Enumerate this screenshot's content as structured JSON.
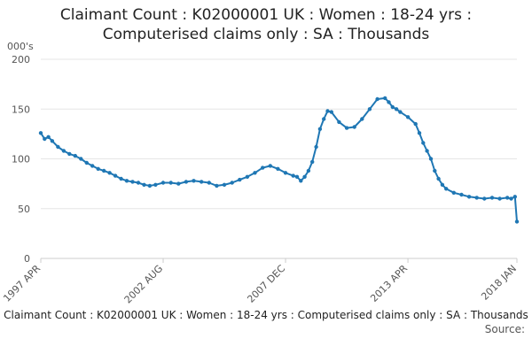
{
  "chart_data": {
    "type": "line",
    "title_line1": "Claimant Count : K02000001 UK : Women : 18-24 yrs :",
    "title_line2": "Computerised claims only : SA : Thousands",
    "ylabel": "000's",
    "ylim": [
      0,
      200
    ],
    "yticks": [
      "0",
      "50",
      "100",
      "150",
      "200"
    ],
    "xticks": [
      "1997 APR",
      "2002 AUG",
      "2007 DEC",
      "2013 APR",
      "2018 JAN"
    ],
    "grid": true,
    "series_color": "#1f77b4",
    "series": [
      {
        "x": [
          "1997 APR",
          "1997 JUN",
          "1997 AUG",
          "1997 OCT",
          "1998 JAN",
          "1998 APR",
          "1998 JUL",
          "1998 OCT",
          "1999 JAN",
          "1999 APR",
          "1999 JUL",
          "1999 OCT",
          "2000 JAN",
          "2000 APR",
          "2000 JUL",
          "2000 OCT",
          "2001 JAN",
          "2001 APR",
          "2001 JUL",
          "2001 OCT",
          "2002 JAN",
          "2002 APR",
          "2002 AUG",
          "2002 DEC",
          "2003 APR",
          "2003 AUG",
          "2003 DEC",
          "2004 APR",
          "2004 AUG",
          "2004 DEC",
          "2005 APR",
          "2005 AUG",
          "2005 DEC",
          "2006 APR",
          "2006 AUG",
          "2006 DEC",
          "2007 APR",
          "2007 AUG",
          "2007 DEC",
          "2008 APR",
          "2008 JUN",
          "2008 AUG",
          "2008 OCT",
          "2008 DEC",
          "2009 FEB",
          "2009 APR",
          "2009 JUN",
          "2009 AUG",
          "2009 OCT",
          "2009 DEC",
          "2010 APR",
          "2010 AUG",
          "2010 DEC",
          "2011 APR",
          "2011 AUG",
          "2011 DEC",
          "2012 APR",
          "2012 JUN",
          "2012 AUG",
          "2012 OCT",
          "2012 DEC",
          "2013 APR",
          "2013 AUG",
          "2013 OCT",
          "2013 DEC",
          "2014 FEB",
          "2014 APR",
          "2014 JUN",
          "2014 AUG",
          "2014 OCT",
          "2014 DEC",
          "2015 APR",
          "2015 AUG",
          "2015 DEC",
          "2016 APR",
          "2016 AUG",
          "2016 DEC",
          "2017 APR",
          "2017 AUG",
          "2017 OCT",
          "2017 DEC",
          "2018 JAN"
        ],
        "values": [
          126,
          120,
          122,
          118,
          112,
          108,
          105,
          103,
          100,
          96,
          93,
          90,
          88,
          86,
          83,
          80,
          78,
          77,
          76,
          74,
          73,
          74,
          76,
          76,
          75,
          77,
          78,
          77,
          76,
          73,
          74,
          76,
          79,
          82,
          86,
          91,
          93,
          90,
          86,
          83,
          82,
          78,
          82,
          88,
          97,
          112,
          130,
          140,
          148,
          147,
          137,
          131,
          132,
          140,
          150,
          160,
          161,
          157,
          152,
          150,
          147,
          142,
          135,
          126,
          116,
          108,
          100,
          88,
          80,
          74,
          70,
          66,
          64,
          62,
          61,
          60,
          61,
          60,
          61,
          60,
          62,
          37
        ]
      }
    ],
    "footer_title": "Claimant Count : K02000001 UK : Women : 18-24 yrs : Computerised claims only : SA : Thousands",
    "source_label": "Source:"
  }
}
